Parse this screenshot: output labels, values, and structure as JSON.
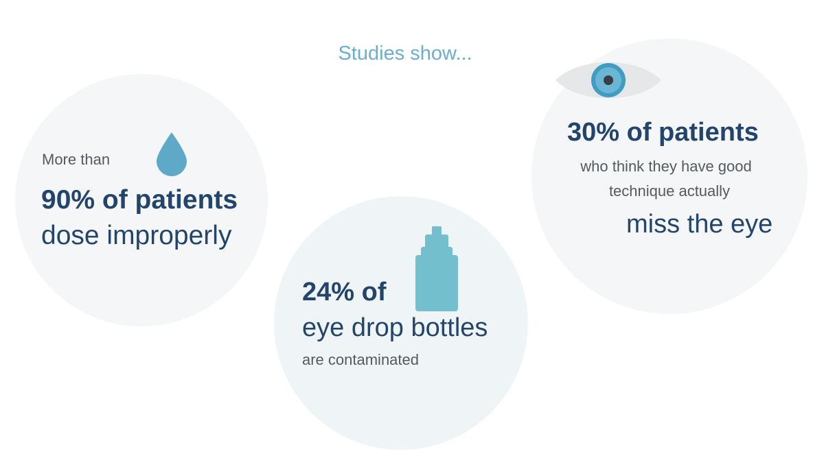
{
  "heading": "Studies show...",
  "stat1": {
    "prefix": "More than",
    "headline": "90% of patients",
    "detail": "dose improperly",
    "icon": "drop-icon"
  },
  "stat2": {
    "headline": "24% of",
    "subject": "eye drop bottles",
    "detail": "are contaminated",
    "icon": "bottle-icon"
  },
  "stat3": {
    "headline": "30% of patients",
    "line1": "who think they have good",
    "line2": "technique actually",
    "detail": "miss the eye",
    "icon": "eye-icon"
  },
  "colors": {
    "heading": "#6aaed0",
    "text_dark": "#24456b",
    "text_gray": "#555a60",
    "icon_blue": "#5ea9c8",
    "bottle_blue": "#74bfce",
    "circle_bg": "#f4f6f8"
  }
}
